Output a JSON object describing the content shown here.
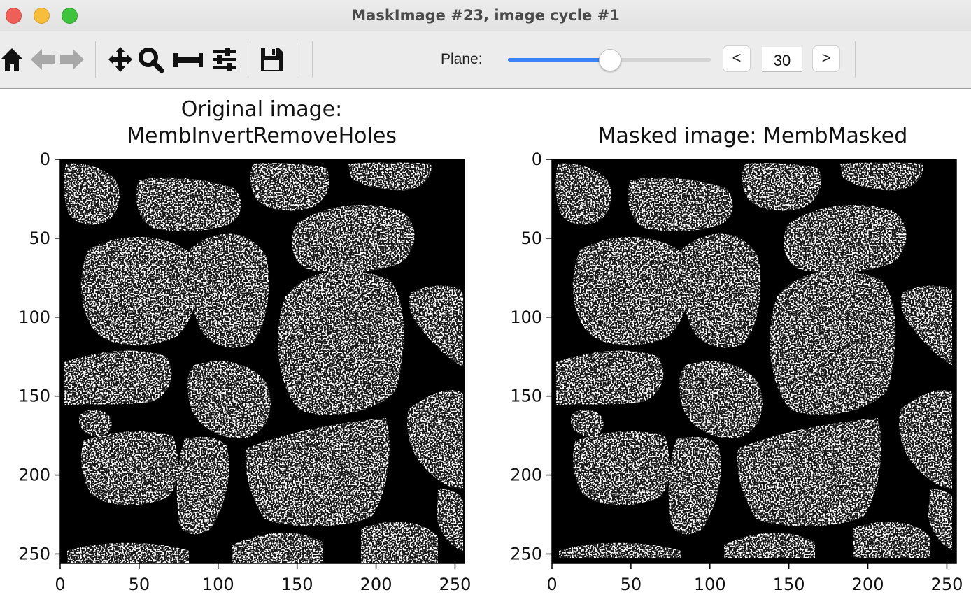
{
  "window": {
    "title": "MaskImage #23, image cycle #1"
  },
  "toolbar": {
    "icons": [
      "home-icon",
      "back-arrow-icon",
      "forward-arrow-icon",
      "pan-icon",
      "zoom-icon",
      "subplots-icon",
      "configure-icon",
      "save-icon"
    ],
    "plane_label": "Plane:",
    "plane_value": "30",
    "plane_fraction": 0.5,
    "prev_label": "<",
    "next_label": ">"
  },
  "plots": [
    {
      "title_line1": "Original image:",
      "title_line2": "MembInvertRemoveHoles",
      "x_ticks": [
        "0",
        "50",
        "100",
        "150",
        "200",
        "250"
      ],
      "y_ticks": [
        "0",
        "50",
        "100",
        "150",
        "200",
        "250"
      ]
    },
    {
      "title_line1": "",
      "title_line2": "Masked image: MembMasked",
      "x_ticks": [
        "0",
        "50",
        "100",
        "150",
        "200",
        "250"
      ],
      "y_ticks": [
        "0",
        "50",
        "100",
        "150",
        "200",
        "250"
      ]
    }
  ],
  "chart_data": [
    {
      "type": "heatmap",
      "title": "Original image:\nMembInvertRemoveHoles",
      "xlim": [
        0,
        256
      ],
      "ylim": [
        256,
        0
      ],
      "x_ticks": [
        0,
        50,
        100,
        150,
        200,
        250
      ],
      "y_ticks": [
        0,
        50,
        100,
        150,
        200,
        250
      ],
      "colormap": [
        "#000000",
        "#ffffff"
      ]
    },
    {
      "type": "heatmap",
      "title": "Masked image: MembMasked",
      "xlim": [
        0,
        256
      ],
      "ylim": [
        256,
        0
      ],
      "x_ticks": [
        0,
        50,
        100,
        150,
        200,
        250
      ],
      "y_ticks": [
        0,
        50,
        100,
        150,
        200,
        250
      ],
      "colormap": [
        "#000000",
        "#ffffff"
      ]
    }
  ]
}
